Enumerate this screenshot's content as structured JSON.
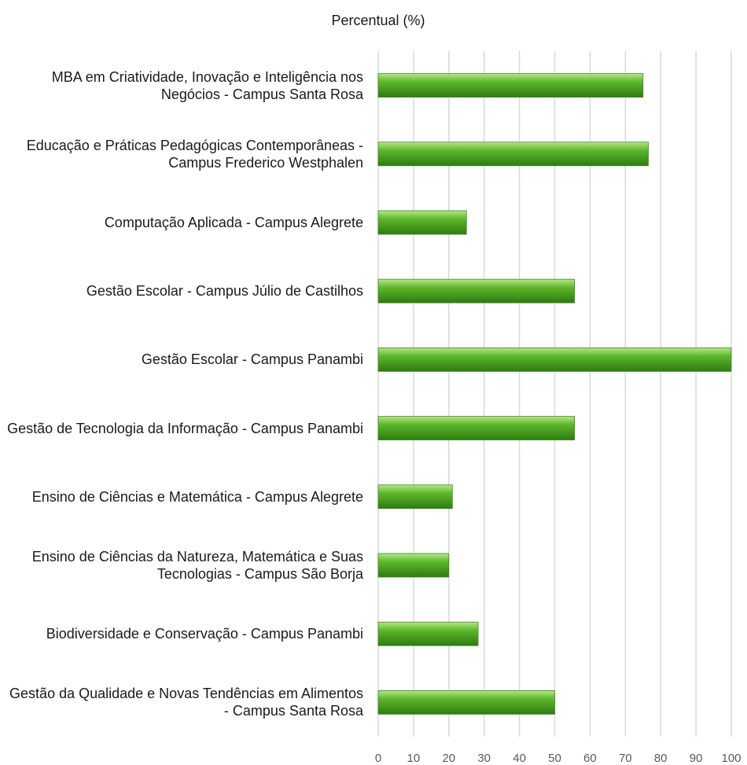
{
  "chart_data": {
    "type": "barh",
    "title": "Percentual (%)",
    "categories": [
      "MBA em Criatividade, Inovação e Inteligência nos Negócios - Campus Santa Rosa",
      "Educação e Práticas Pedagógicas Contemporâneas - Campus Frederico Westphalen",
      "Computação Aplicada - Campus Alegrete",
      "Gestão Escolar - Campus Júlio de Castilhos",
      "Gestão Escolar - Campus Panambi",
      "Gestão de Tecnologia da Informação - Campus Panambi",
      "Ensino de Ciências e Matemática - Campus Alegrete",
      "Ensino de Ciências da Natureza, Matemática e Suas Tecnologias - Campus São Borja",
      "Biodiversidade e Conservação - Campus Panambi",
      "Gestão da Qualidade e Novas Tendências em Alimentos - Campus Santa Rosa"
    ],
    "values": [
      75,
      76.5,
      25,
      55.6,
      100,
      55.6,
      21,
      20,
      28.3,
      50
    ],
    "color": "#5cb82a",
    "xlim": [
      0,
      100
    ],
    "xticks": [
      0,
      10,
      20,
      30,
      40,
      50,
      60,
      70,
      80,
      90,
      100
    ],
    "grid": true
  }
}
